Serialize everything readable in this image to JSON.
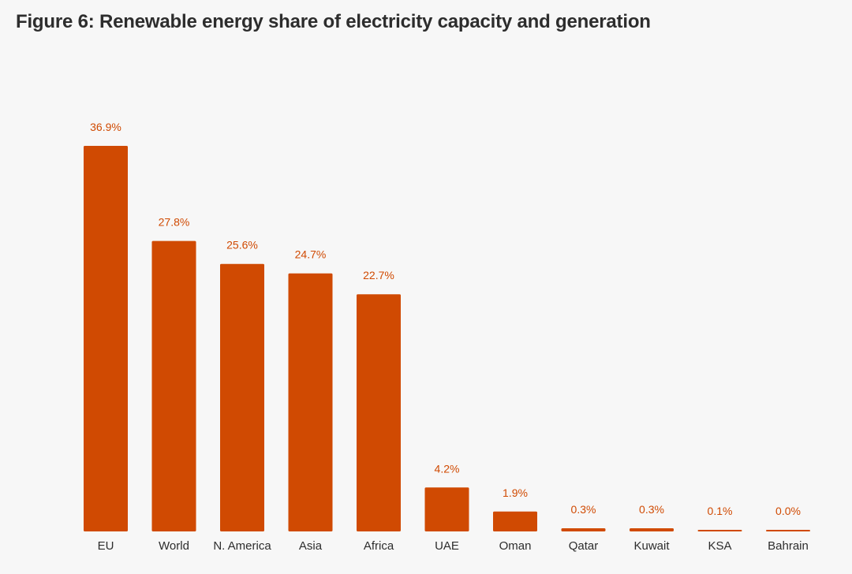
{
  "figure": {
    "title": "Figure 6: Renewable energy share of electricity capacity and generation"
  },
  "colors": {
    "bar": "#d04a02",
    "value_label": "#d04a02",
    "text": "#2d2d2d",
    "background": "#f7f7f7"
  },
  "chart_data": {
    "type": "bar",
    "title": "Figure 6: Renewable energy share of electricity capacity and generation",
    "categories": [
      "EU",
      "World",
      "N. America",
      "Asia",
      "Africa",
      "UAE",
      "Oman",
      "Qatar",
      "Kuwait",
      "KSA",
      "Bahrain"
    ],
    "values": [
      36.9,
      27.8,
      25.6,
      24.7,
      22.7,
      4.2,
      1.9,
      0.3,
      0.3,
      0.1,
      0.0
    ],
    "value_labels": [
      "36.9%",
      "27.8%",
      "25.6%",
      "24.7%",
      "22.7%",
      "4.2%",
      "1.9%",
      "0.3%",
      "0.3%",
      "0.1%",
      "0.0%"
    ],
    "unit": "%",
    "xlabel": "",
    "ylabel": "",
    "ylim": [
      0,
      36.9
    ],
    "grid": false,
    "legend": "none"
  }
}
